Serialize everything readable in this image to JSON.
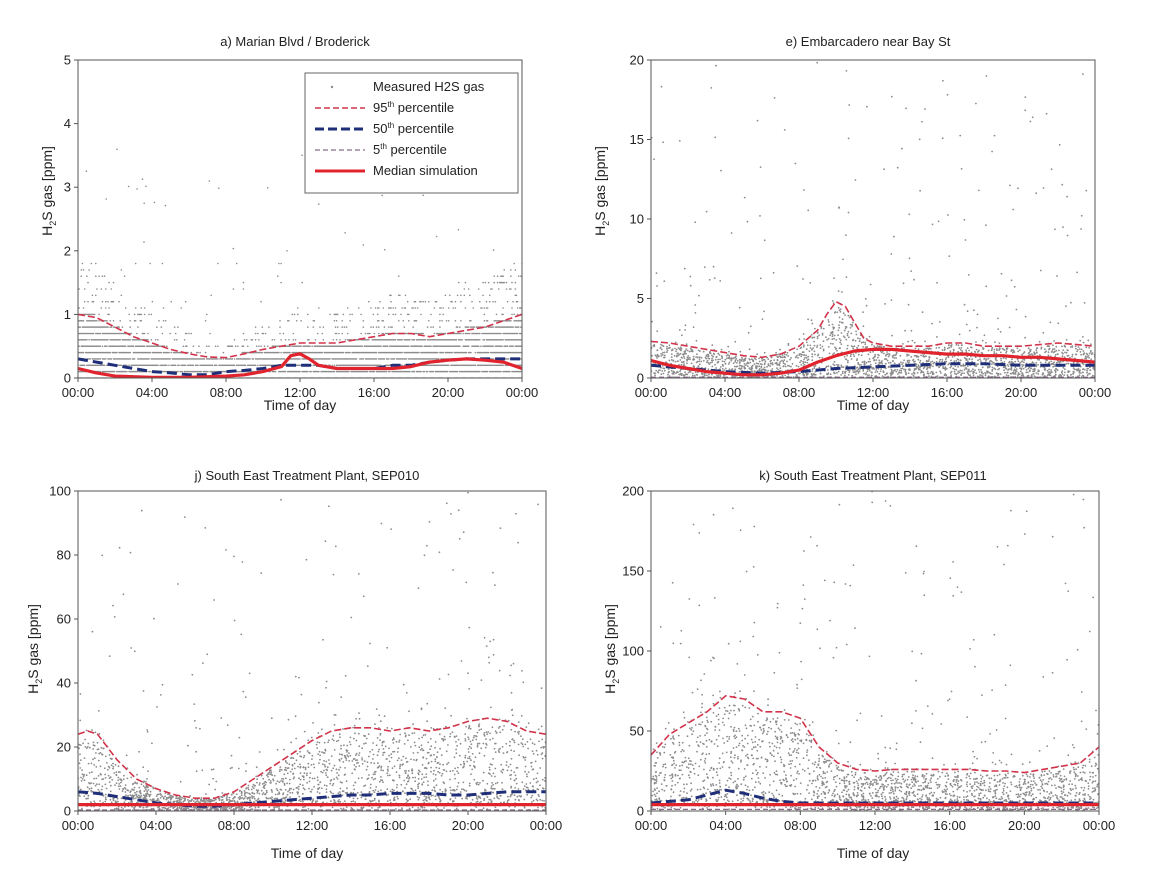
{
  "legend": {
    "entries": [
      {
        "key": "measured",
        "label": "Measured H2S gas"
      },
      {
        "key": "p95",
        "label": "95",
        "sup": "th",
        "suffix": " percentile"
      },
      {
        "key": "p50",
        "label": "50",
        "sup": "th",
        "suffix": " percentile"
      },
      {
        "key": "p5",
        "label": "5",
        "sup": "th",
        "suffix": " percentile"
      },
      {
        "key": "median",
        "label": "Median simulation"
      }
    ]
  },
  "colors": {
    "measured": "#8c8c8c",
    "p95": "#d2334a",
    "p50": "#1f2e78",
    "p5": "#8a6a8a",
    "median": "#e0232d",
    "axis": "#555555"
  },
  "chart_data": [
    {
      "type": "scatter",
      "title": "a) Marian Blvd / Broderick",
      "xlabel": "Time of day",
      "ylabel": {
        "main": "H",
        "sub": "2",
        "rest": "S gas [ppm]"
      },
      "xticks": [
        "00:00",
        "04:00",
        "08:00",
        "12:00",
        "16:00",
        "20:00",
        "00:00"
      ],
      "xlim": [
        0,
        24
      ],
      "ylim": [
        0,
        5
      ],
      "yticks": [
        0,
        1,
        2,
        3,
        4,
        5
      ],
      "has_legend": true,
      "measured_style": "quantized",
      "series": [
        {
          "key": "p95",
          "x": [
            0,
            1,
            2,
            3,
            4,
            5,
            6,
            7,
            8,
            9,
            10,
            11,
            12,
            13,
            14,
            15,
            16,
            17,
            18,
            19,
            20,
            21,
            22,
            23,
            24
          ],
          "y": [
            1.0,
            0.95,
            0.8,
            0.65,
            0.55,
            0.45,
            0.38,
            0.33,
            0.32,
            0.38,
            0.45,
            0.5,
            0.55,
            0.55,
            0.55,
            0.6,
            0.65,
            0.7,
            0.7,
            0.65,
            0.7,
            0.75,
            0.8,
            0.9,
            1.0
          ]
        },
        {
          "key": "p50",
          "x": [
            0,
            1,
            2,
            3,
            4,
            5,
            6,
            7,
            8,
            9,
            10,
            11,
            12,
            13,
            14,
            15,
            16,
            17,
            18,
            19,
            20,
            21,
            22,
            23,
            24
          ],
          "y": [
            0.3,
            0.25,
            0.2,
            0.15,
            0.1,
            0.08,
            0.05,
            0.05,
            0.1,
            0.12,
            0.15,
            0.2,
            0.2,
            0.2,
            0.15,
            0.15,
            0.15,
            0.2,
            0.2,
            0.25,
            0.28,
            0.3,
            0.3,
            0.3,
            0.3
          ]
        },
        {
          "key": "p5",
          "x": [
            0,
            24
          ],
          "y": [
            0.0,
            0.0
          ]
        },
        {
          "key": "median",
          "x": [
            0,
            1,
            2,
            3,
            4,
            5,
            6,
            7,
            8,
            9,
            10,
            11,
            11.5,
            12,
            12.5,
            13,
            14,
            15,
            16,
            17,
            18,
            19,
            20,
            21,
            22,
            23,
            24
          ],
          "y": [
            0.15,
            0.08,
            0.03,
            0.02,
            0.01,
            0.01,
            0.01,
            0.02,
            0.03,
            0.05,
            0.1,
            0.18,
            0.35,
            0.38,
            0.3,
            0.2,
            0.15,
            0.15,
            0.15,
            0.15,
            0.18,
            0.25,
            0.28,
            0.3,
            0.28,
            0.25,
            0.15
          ]
        }
      ]
    },
    {
      "type": "scatter",
      "title": "e) Embarcadero near Bay St",
      "xlabel": "Time of day",
      "ylabel": {
        "main": "H",
        "sub": "2",
        "rest": "S gas [ppm]"
      },
      "xticks": [
        "00:00",
        "04:00",
        "08:00",
        "12:00",
        "16:00",
        "20:00",
        "00:00"
      ],
      "xlim": [
        0,
        24
      ],
      "ylim": [
        0,
        20
      ],
      "yticks": [
        0,
        5,
        10,
        15,
        20
      ],
      "has_legend": false,
      "measured_style": "scatter",
      "series": [
        {
          "key": "p95",
          "x": [
            0,
            1,
            2,
            3,
            4,
            5,
            6,
            7,
            8,
            9,
            9.5,
            10,
            10.5,
            11,
            11.5,
            12,
            13,
            14,
            15,
            16,
            17,
            18,
            19,
            20,
            21,
            22,
            23,
            24
          ],
          "y": [
            2.3,
            2.2,
            2.0,
            1.8,
            1.6,
            1.4,
            1.3,
            1.5,
            2.0,
            3.0,
            4.0,
            4.8,
            4.5,
            3.5,
            2.5,
            2.2,
            2.0,
            2.0,
            2.0,
            2.2,
            2.2,
            2.0,
            2.0,
            2.0,
            2.1,
            2.2,
            2.1,
            2.0
          ]
        },
        {
          "key": "p50",
          "x": [
            0,
            2,
            4,
            6,
            8,
            10,
            12,
            14,
            16,
            18,
            20,
            22,
            24
          ],
          "y": [
            0.8,
            0.6,
            0.4,
            0.3,
            0.4,
            0.6,
            0.7,
            0.8,
            0.9,
            0.9,
            0.8,
            0.8,
            0.8
          ]
        },
        {
          "key": "p5",
          "x": [
            0,
            24
          ],
          "y": [
            0.05,
            0.05
          ]
        },
        {
          "key": "median",
          "x": [
            0,
            1,
            2,
            3,
            4,
            5,
            6,
            7,
            8,
            9,
            10,
            11,
            12,
            13,
            14,
            15,
            16,
            17,
            18,
            19,
            20,
            21,
            22,
            23,
            24
          ],
          "y": [
            1.1,
            0.8,
            0.6,
            0.4,
            0.3,
            0.2,
            0.2,
            0.3,
            0.5,
            1.0,
            1.4,
            1.7,
            1.8,
            1.8,
            1.7,
            1.6,
            1.5,
            1.5,
            1.4,
            1.4,
            1.3,
            1.3,
            1.2,
            1.1,
            1.0
          ]
        }
      ]
    },
    {
      "type": "scatter",
      "title": "j) South East Treatment Plant, SEP010",
      "xlabel": "Time of day",
      "ylabel": {
        "main": "H",
        "sub": "2",
        "rest": "S gas [ppm]"
      },
      "xticks": [
        "00:00",
        "04:00",
        "08:00",
        "12:00",
        "16:00",
        "20:00",
        "00:00"
      ],
      "xlim": [
        0,
        24
      ],
      "ylim": [
        0,
        100
      ],
      "yticks": [
        0,
        20,
        40,
        60,
        80,
        100
      ],
      "has_legend": false,
      "measured_style": "scatter",
      "series": [
        {
          "key": "p95",
          "x": [
            0,
            0.5,
            1,
            1.5,
            2,
            3,
            4,
            5,
            6,
            7,
            8,
            9,
            10,
            11,
            12,
            13,
            14,
            15,
            16,
            17,
            18,
            19,
            20,
            21,
            22,
            23,
            24
          ],
          "y": [
            24,
            25,
            24,
            20,
            16,
            10,
            7,
            5,
            4,
            4,
            6,
            10,
            14,
            18,
            22,
            25,
            26,
            26,
            25,
            26,
            25,
            26,
            28,
            29,
            28,
            25,
            24
          ]
        },
        {
          "key": "p50",
          "x": [
            0,
            1,
            2,
            3,
            4,
            5,
            6,
            7,
            8,
            9,
            10,
            11,
            12,
            13,
            14,
            15,
            16,
            17,
            18,
            19,
            20,
            21,
            22,
            23,
            24
          ],
          "y": [
            6,
            5.5,
            4.5,
            3.5,
            2.5,
            2,
            1.5,
            1.5,
            2,
            2.5,
            3,
            3.5,
            4,
            4.5,
            5,
            5,
            5.5,
            5.5,
            5.5,
            5,
            5,
            5.5,
            6,
            6,
            6
          ]
        },
        {
          "key": "p5",
          "x": [
            0,
            24
          ],
          "y": [
            0.3,
            0.3
          ]
        },
        {
          "key": "median",
          "x": [
            0,
            24
          ],
          "y": [
            2,
            2
          ]
        }
      ]
    },
    {
      "type": "scatter",
      "title": "k) South East Treatment Plant, SEP011",
      "xlabel": "Time of day",
      "ylabel": {
        "main": "H",
        "sub": "2",
        "rest": "S gas [ppm]"
      },
      "xticks": [
        "00:00",
        "04:00",
        "08:00",
        "12:00",
        "16:00",
        "20:00",
        "00:00"
      ],
      "xlim": [
        0,
        24
      ],
      "ylim": [
        0,
        200
      ],
      "yticks": [
        0,
        50,
        100,
        150,
        200
      ],
      "has_legend": false,
      "measured_style": "scatter",
      "series": [
        {
          "key": "p95",
          "x": [
            0,
            1,
            2,
            3,
            4,
            5,
            6,
            7,
            8,
            9,
            10,
            11,
            12,
            13,
            14,
            15,
            16,
            17,
            18,
            19,
            20,
            21,
            22,
            23,
            24
          ],
          "y": [
            35,
            48,
            55,
            62,
            72,
            70,
            62,
            62,
            58,
            40,
            30,
            26,
            25,
            26,
            26,
            26,
            26,
            26,
            25,
            25,
            24,
            26,
            28,
            30,
            40
          ]
        },
        {
          "key": "p50",
          "x": [
            0,
            1,
            2,
            3,
            4,
            5,
            6,
            7,
            8,
            9,
            10,
            12,
            14,
            16,
            18,
            20,
            22,
            24
          ],
          "y": [
            5,
            6,
            7,
            10,
            13,
            11,
            8,
            6,
            5,
            5,
            5,
            5,
            5,
            5,
            5,
            5,
            5,
            5
          ]
        },
        {
          "key": "p5",
          "x": [
            0,
            24
          ],
          "y": [
            1,
            1
          ]
        },
        {
          "key": "median",
          "x": [
            0,
            24
          ],
          "y": [
            4,
            4
          ]
        }
      ]
    }
  ]
}
